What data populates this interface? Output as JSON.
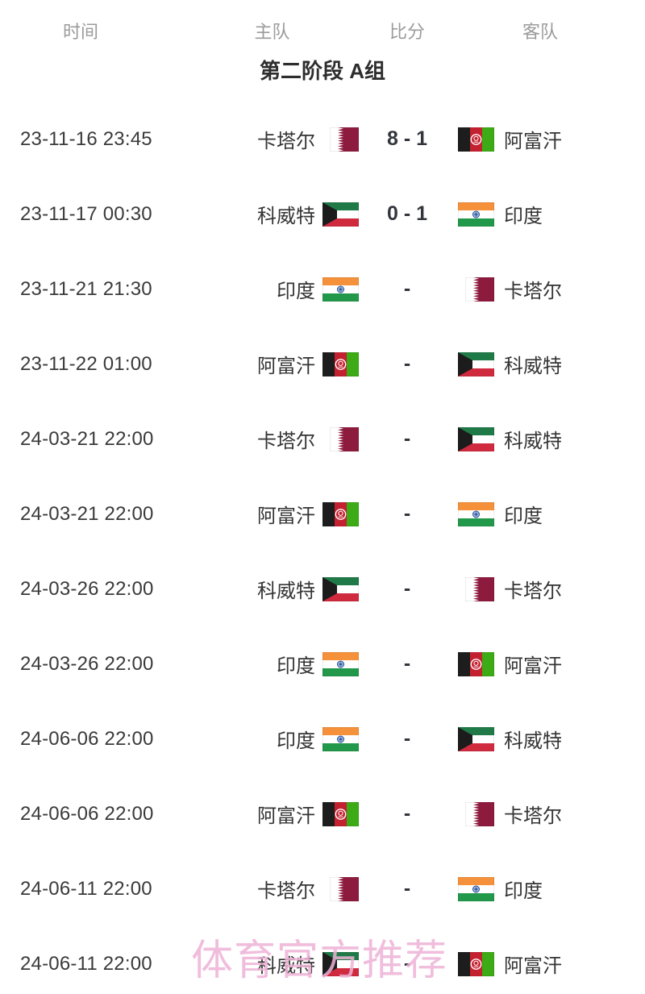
{
  "table": {
    "columns": [
      {
        "key": "time",
        "label": "时间"
      },
      {
        "key": "home",
        "label": "主队"
      },
      {
        "key": "score",
        "label": "比分"
      },
      {
        "key": "away",
        "label": "客队"
      }
    ],
    "group_title": "第二阶段 A组",
    "matches": [
      {
        "time": "23-11-16 23:45",
        "home": "卡塔尔",
        "home_flag": "qatar",
        "score": "8 - 1",
        "away": "阿富汗",
        "away_flag": "afghanistan"
      },
      {
        "time": "23-11-17 00:30",
        "home": "科威特",
        "home_flag": "kuwait",
        "score": "0 - 1",
        "away": "印度",
        "away_flag": "india"
      },
      {
        "time": "23-11-21 21:30",
        "home": "印度",
        "home_flag": "india",
        "score": "-",
        "away": "卡塔尔",
        "away_flag": "qatar"
      },
      {
        "time": "23-11-22 01:00",
        "home": "阿富汗",
        "home_flag": "afghanistan",
        "score": "-",
        "away": "科威特",
        "away_flag": "kuwait"
      },
      {
        "time": "24-03-21 22:00",
        "home": "卡塔尔",
        "home_flag": "qatar",
        "score": "-",
        "away": "科威特",
        "away_flag": "kuwait"
      },
      {
        "time": "24-03-21 22:00",
        "home": "阿富汗",
        "home_flag": "afghanistan",
        "score": "-",
        "away": "印度",
        "away_flag": "india"
      },
      {
        "time": "24-03-26 22:00",
        "home": "科威特",
        "home_flag": "kuwait",
        "score": "-",
        "away": "卡塔尔",
        "away_flag": "qatar"
      },
      {
        "time": "24-03-26 22:00",
        "home": "印度",
        "home_flag": "india",
        "score": "-",
        "away": "阿富汗",
        "away_flag": "afghanistan"
      },
      {
        "time": "24-06-06 22:00",
        "home": "印度",
        "home_flag": "india",
        "score": "-",
        "away": "科威特",
        "away_flag": "kuwait"
      },
      {
        "time": "24-06-06 22:00",
        "home": "阿富汗",
        "home_flag": "afghanistan",
        "score": "-",
        "away": "卡塔尔",
        "away_flag": "qatar"
      },
      {
        "time": "24-06-11 22:00",
        "home": "卡塔尔",
        "home_flag": "qatar",
        "score": "-",
        "away": "印度",
        "away_flag": "india"
      },
      {
        "time": "24-06-11 22:00",
        "home": "科威特",
        "home_flag": "kuwait",
        "score": "-",
        "away": "阿富汗",
        "away_flag": "afghanistan"
      }
    ]
  },
  "watermark": "体育官方推荐",
  "colors": {
    "header_text": "#9b9b9b",
    "title_text": "#2d2d2d",
    "body_text": "#3a3a3a",
    "watermark_pink": "#eeb2d6",
    "flags": {
      "qatar": {
        "maroon": "#8d1b3d",
        "white": "#ffffff"
      },
      "kuwait": {
        "green": "#1f7a48",
        "white": "#ffffff",
        "red": "#d02a3f",
        "black": "#1c1c1c"
      },
      "india": {
        "saffron": "#f5913a",
        "white": "#ffffff",
        "green": "#22984a",
        "navy": "#1a4b9c"
      },
      "afghanistan": {
        "black": "#1d1d1d",
        "red": "#c42130",
        "green": "#3cab15",
        "white": "#ffffff"
      }
    }
  }
}
